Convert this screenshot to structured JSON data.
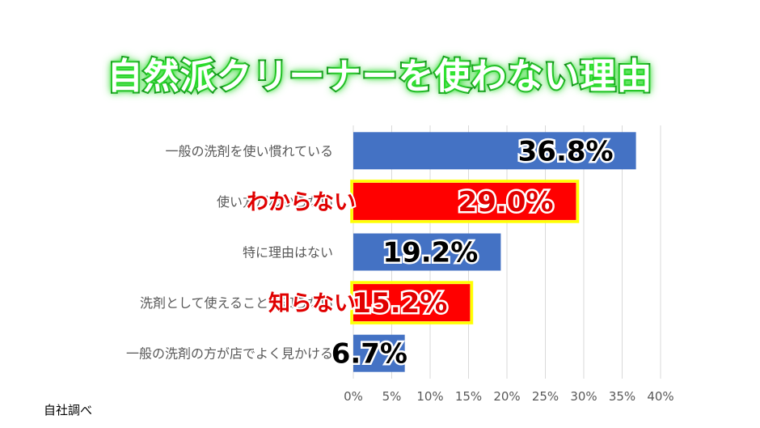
{
  "title": "自然派クリーナーを使わない理由",
  "source_note": "自社調べ",
  "colors": {
    "normal_bar": "#4472c4",
    "highlight_bar": "#ff0000",
    "highlight_glow": "#ffff00",
    "title_outline": "#0b6f16",
    "gridline": "#d9d9d9",
    "value_text": "#000000",
    "highlight_value_text": "#e00000"
  },
  "chart_data": {
    "type": "bar",
    "orientation": "horizontal",
    "title": "自然派クリーナーを使わない理由",
    "xlabel": "",
    "ylabel": "",
    "xlim": [
      0,
      40
    ],
    "tick_values": [
      0,
      5,
      10,
      15,
      20,
      25,
      30,
      35,
      40
    ],
    "tick_labels": [
      "0%",
      "5%",
      "10%",
      "15%",
      "20%",
      "25%",
      "30%",
      "35%",
      "40%"
    ],
    "grid": true,
    "categories": [
      "一般の洗剤を使い慣れている",
      "使い方がわからない",
      "特に理由はない",
      "洗剤として使えることを知らない",
      "一般の洗剤の方が店でよく見かける"
    ],
    "values": [
      36.8,
      29.0,
      19.2,
      15.2,
      6.7
    ],
    "value_labels": [
      "36.8%",
      "29.0%",
      "19.2%",
      "15.2%",
      "6.7%"
    ],
    "highlighted": [
      false,
      true,
      false,
      true,
      false
    ],
    "annotations": [
      {
        "category_index": 1,
        "text": "わからない"
      },
      {
        "category_index": 3,
        "text": "知らない"
      }
    ]
  }
}
